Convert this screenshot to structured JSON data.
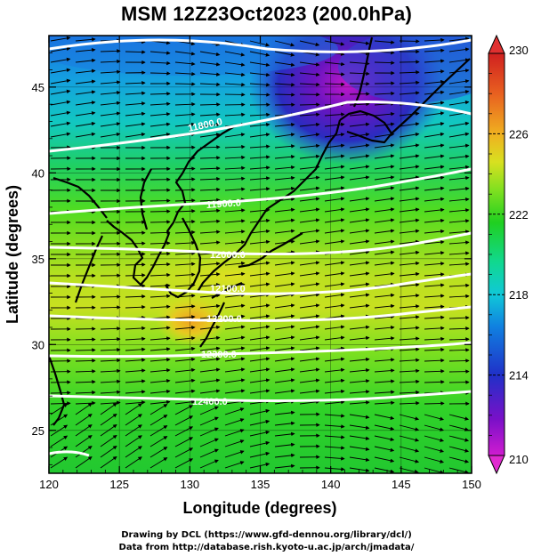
{
  "title": "MSM 12Z23Oct2023 (200.0hPa)",
  "x_axis": {
    "label": "Longitude (degrees)",
    "ticks": [
      "120",
      "125",
      "130",
      "135",
      "140",
      "145",
      "150"
    ]
  },
  "y_axis": {
    "label": "Latitude  (degrees)",
    "ticks": [
      "25",
      "30",
      "35",
      "40",
      "45"
    ]
  },
  "colorbar": {
    "ticks": [
      "210",
      "214",
      "218",
      "222",
      "226",
      "230"
    ]
  },
  "contours": {
    "labels": [
      "11800.0",
      "11900.0",
      "12000.0",
      "12100.0",
      "12200.0",
      "12300.0",
      "12400.0"
    ]
  },
  "credits": {
    "line1": "Drawing by DCL (https://www.gfd-dennou.org/library/dcl/)",
    "line2": "Data from http://database.rish.kyoto-u.ac.jp/arch/jmadata/"
  },
  "map_data": {
    "lon_range": [
      120,
      150
    ],
    "lat_range": [
      22.5,
      48
    ],
    "color_range": [
      210,
      230
    ],
    "colormap": [
      "#d01cd0",
      "#7a10c8",
      "#2030c8",
      "#1080e0",
      "#10c8d8",
      "#10d890",
      "#20d020",
      "#80e020",
      "#d8e020",
      "#f0b020",
      "#e86020",
      "#d02020"
    ],
    "vector_field": "wind arrows, predominantly westerly"
  }
}
